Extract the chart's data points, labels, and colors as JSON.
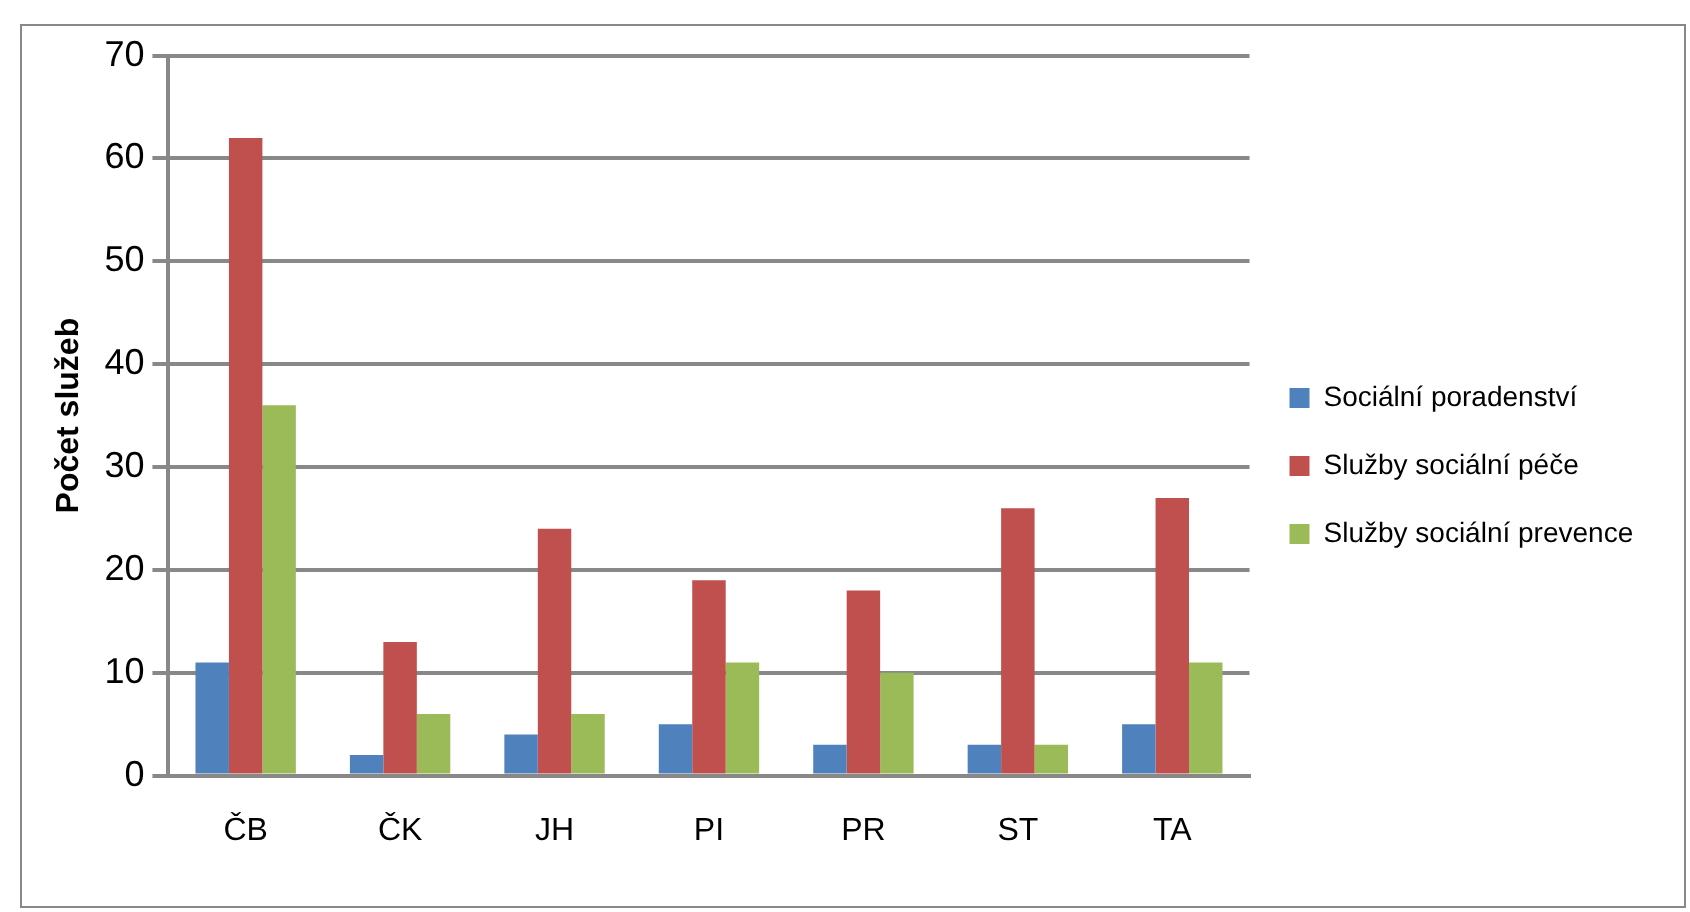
{
  "chart_data": {
    "type": "bar",
    "ylabel": "Počet služeb",
    "categories": [
      "ČB",
      "ČK",
      "JH",
      "PI",
      "PR",
      "ST",
      "TA"
    ],
    "series": [
      {
        "name": "Sociální poradenství",
        "color": "#4f81bd",
        "values": [
          11,
          2,
          4,
          5,
          3,
          3,
          5
        ]
      },
      {
        "name": "Služby sociální péče",
        "color": "#c0504d",
        "values": [
          62,
          13,
          24,
          19,
          18,
          26,
          27
        ]
      },
      {
        "name": "Služby sociální prevence",
        "color": "#9bbb59",
        "values": [
          36,
          6,
          6,
          11,
          10,
          3,
          11
        ]
      }
    ],
    "ylim": [
      0,
      70
    ],
    "yticks": [
      0,
      10,
      20,
      30,
      40,
      50,
      60,
      70
    ],
    "grid": "y",
    "legend": "right"
  }
}
